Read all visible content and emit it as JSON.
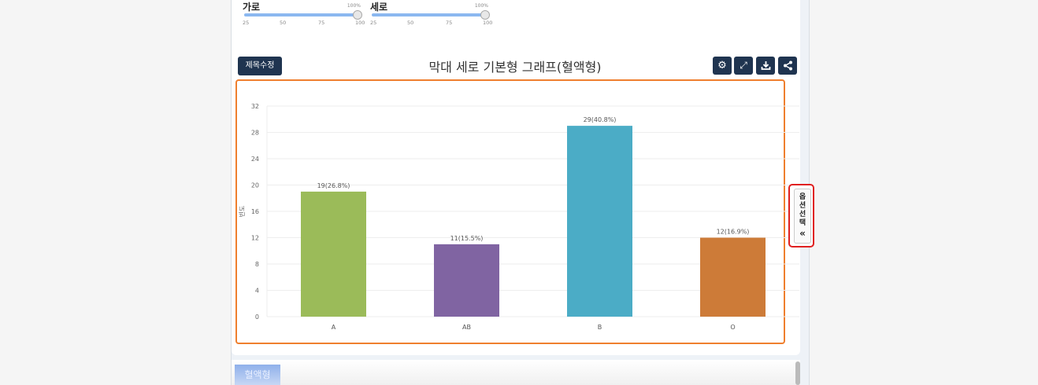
{
  "sliders": [
    {
      "label": "가로",
      "value_label": "100%",
      "value": 100,
      "ticks": [
        "25",
        "50",
        "75",
        "100"
      ]
    },
    {
      "label": "세로",
      "value_label": "100%",
      "value": 100,
      "ticks": [
        "25",
        "50",
        "75",
        "100"
      ]
    }
  ],
  "toolbar": {
    "edit_title": "제목수정",
    "icons": [
      "gear-icon",
      "expand-icon",
      "download-icon",
      "share-icon"
    ]
  },
  "title": "막대 세로 기본형 그래프(혈액형)",
  "option_tab": {
    "label": "옵션선택",
    "icon": "«"
  },
  "bottom_tab": "혈액형",
  "colors": {
    "accent": "#ef7f2e",
    "button": "#1f3450"
  },
  "chart_data": {
    "type": "bar",
    "categories": [
      "A",
      "AB",
      "B",
      "O"
    ],
    "values": [
      19,
      11,
      29,
      12
    ],
    "labels": [
      "19(26.8%)",
      "11(15.5%)",
      "29(40.8%)",
      "12(16.9%)"
    ],
    "colors": [
      "#9bbb59",
      "#8064a2",
      "#4bacc6",
      "#cd7b38"
    ],
    "ylabel": "빈도",
    "ylim": [
      0,
      32
    ],
    "yticks": [
      "0",
      "4",
      "8",
      "12",
      "16",
      "20",
      "24",
      "28",
      "32"
    ],
    "grid": true
  }
}
